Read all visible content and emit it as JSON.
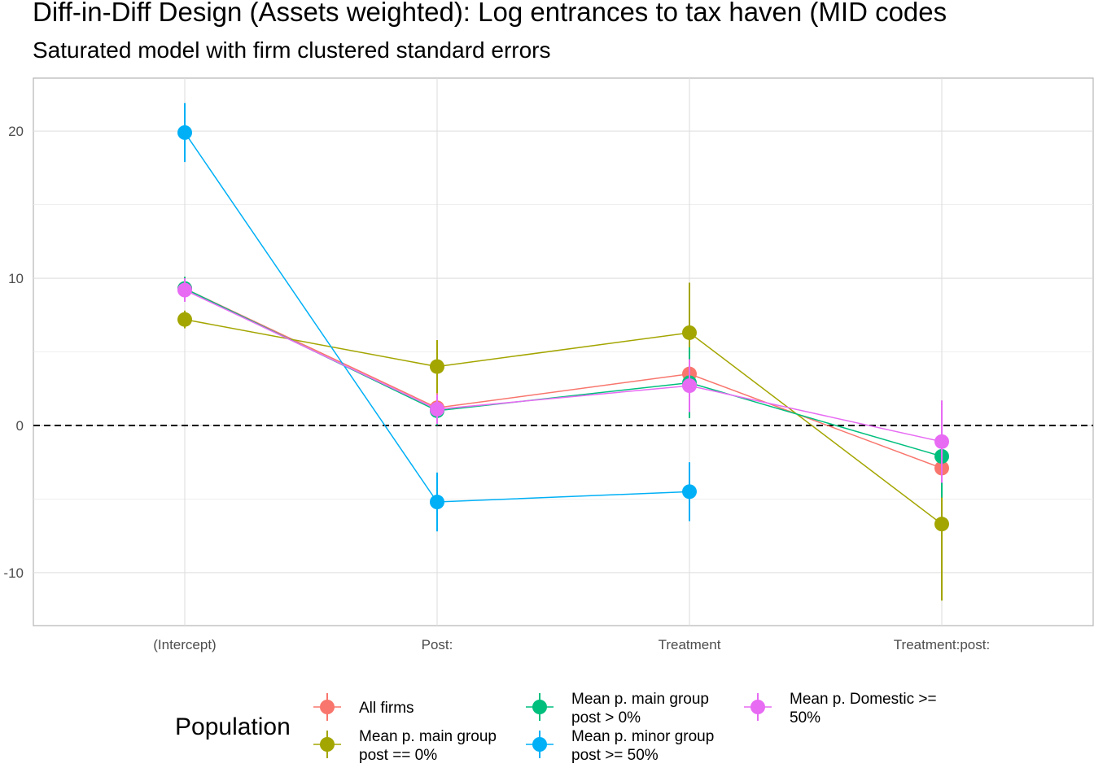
{
  "title": "Diff-in-Diff Design (Assets weighted): Log entrances to tax haven (MID codes",
  "subtitle": "Saturated model with firm clustered standard errors",
  "chart_data": {
    "type": "scatter",
    "title": "Diff-in-Diff Design (Assets weighted): Log entrances to tax haven (MID codes",
    "subtitle": "Saturated model with firm clustered standard errors",
    "categories": [
      "(Intercept)",
      "Post:",
      "Treatment",
      "Treatment:post:"
    ],
    "y_ticks": [
      20,
      10,
      0,
      -10
    ],
    "ylim": [
      -13.6,
      23.6
    ],
    "reference_line": 0,
    "grid": true,
    "legend": {
      "title": "Population",
      "position": "bottom"
    },
    "series": [
      {
        "name": "All firms",
        "color": "#F8766D",
        "values": [
          9.3,
          1.2,
          3.5,
          -2.9
        ],
        "lower": [
          8.5,
          0.2,
          2.5,
          -4.2
        ],
        "upper": [
          10.1,
          2.2,
          4.5,
          -1.6
        ]
      },
      {
        "name": "Mean p. main group post == 0%",
        "color": "#A3A500",
        "values": [
          7.2,
          4.0,
          6.3,
          -6.7
        ],
        "lower": [
          6.6,
          2.2,
          2.9,
          -11.9
        ],
        "upper": [
          7.8,
          5.8,
          9.7,
          -1.5
        ]
      },
      {
        "name": "Mean p. main group post > 0%",
        "color": "#00BF7D",
        "values": [
          9.3,
          1.0,
          2.9,
          -2.1
        ],
        "lower": [
          8.5,
          0.0,
          0.5,
          -4.9
        ],
        "upper": [
          10.1,
          2.0,
          5.3,
          0.7
        ]
      },
      {
        "name": "Mean p. minor group post >= 50%",
        "color": "#00B0F6",
        "values": [
          19.9,
          -5.2,
          -4.5,
          null
        ],
        "lower": [
          17.9,
          -7.2,
          -6.5,
          null
        ],
        "upper": [
          21.9,
          -3.2,
          -2.5,
          null
        ]
      },
      {
        "name": "Mean p. Domestic >= 50%",
        "color": "#E76BF3",
        "values": [
          9.2,
          1.1,
          2.7,
          -1.1
        ],
        "lower": [
          8.4,
          0.1,
          0.9,
          -3.9
        ],
        "upper": [
          10.0,
          2.1,
          4.5,
          1.7
        ]
      }
    ]
  },
  "legend_labels": [
    [
      "All firms"
    ],
    [
      "Mean p. main group",
      "post == 0%"
    ],
    [
      "Mean p. main group",
      "post > 0%"
    ],
    [
      "Mean p. minor group",
      "post >= 50%"
    ],
    [
      "Mean p. Domestic >=",
      "50%"
    ]
  ]
}
